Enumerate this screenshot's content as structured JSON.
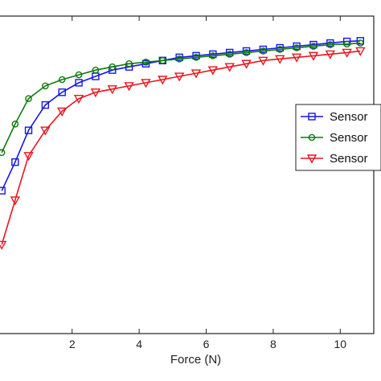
{
  "chart_data": {
    "type": "line",
    "xlabel": "Force (N)",
    "ylabel": "",
    "title": "",
    "xlim": [
      -0.2,
      11.0
    ],
    "ylim": [
      0,
      1.0
    ],
    "xticks": [
      2,
      4,
      6,
      8,
      10
    ],
    "xtick_labels": [
      "2",
      "4",
      "6",
      "8",
      "10"
    ],
    "grid": false,
    "legend_position": "center-right",
    "series": [
      {
        "name": "Sensor",
        "color": "#1515e8",
        "marker": "square",
        "x": [
          -0.1,
          0.3,
          0.7,
          1.2,
          1.7,
          2.2,
          2.7,
          3.2,
          3.7,
          4.2,
          4.7,
          5.2,
          5.7,
          6.2,
          6.7,
          7.2,
          7.7,
          8.2,
          8.7,
          9.2,
          9.7,
          10.2,
          10.6
        ],
        "y": [
          0.45,
          0.54,
          0.64,
          0.72,
          0.76,
          0.79,
          0.81,
          0.83,
          0.84,
          0.85,
          0.86,
          0.87,
          0.875,
          0.88,
          0.885,
          0.89,
          0.895,
          0.9,
          0.905,
          0.91,
          0.915,
          0.92,
          0.922
        ]
      },
      {
        "name": "Sensor",
        "color": "#0c7a0c",
        "marker": "circle",
        "x": [
          -0.1,
          0.3,
          0.7,
          1.2,
          1.7,
          2.2,
          2.7,
          3.2,
          3.7,
          4.2,
          4.7,
          5.2,
          5.7,
          6.2,
          6.7,
          7.2,
          7.7,
          8.2,
          8.7,
          9.2,
          9.7,
          10.2,
          10.6
        ],
        "y": [
          0.57,
          0.66,
          0.74,
          0.78,
          0.8,
          0.815,
          0.83,
          0.84,
          0.85,
          0.855,
          0.86,
          0.865,
          0.87,
          0.875,
          0.88,
          0.885,
          0.89,
          0.895,
          0.9,
          0.905,
          0.91,
          0.912,
          0.915
        ]
      },
      {
        "name": "Sensor",
        "color": "#e8161e",
        "marker": "triangle-down",
        "x": [
          -0.1,
          0.3,
          0.7,
          1.2,
          1.7,
          2.2,
          2.7,
          3.2,
          3.7,
          4.2,
          4.7,
          5.2,
          5.7,
          6.2,
          6.7,
          7.2,
          7.7,
          8.2,
          8.7,
          9.2,
          9.7,
          10.2,
          10.6
        ],
        "y": [
          0.28,
          0.42,
          0.56,
          0.64,
          0.7,
          0.74,
          0.76,
          0.77,
          0.78,
          0.79,
          0.8,
          0.81,
          0.82,
          0.83,
          0.84,
          0.85,
          0.86,
          0.865,
          0.87,
          0.875,
          0.88,
          0.885,
          0.89
        ]
      }
    ]
  }
}
